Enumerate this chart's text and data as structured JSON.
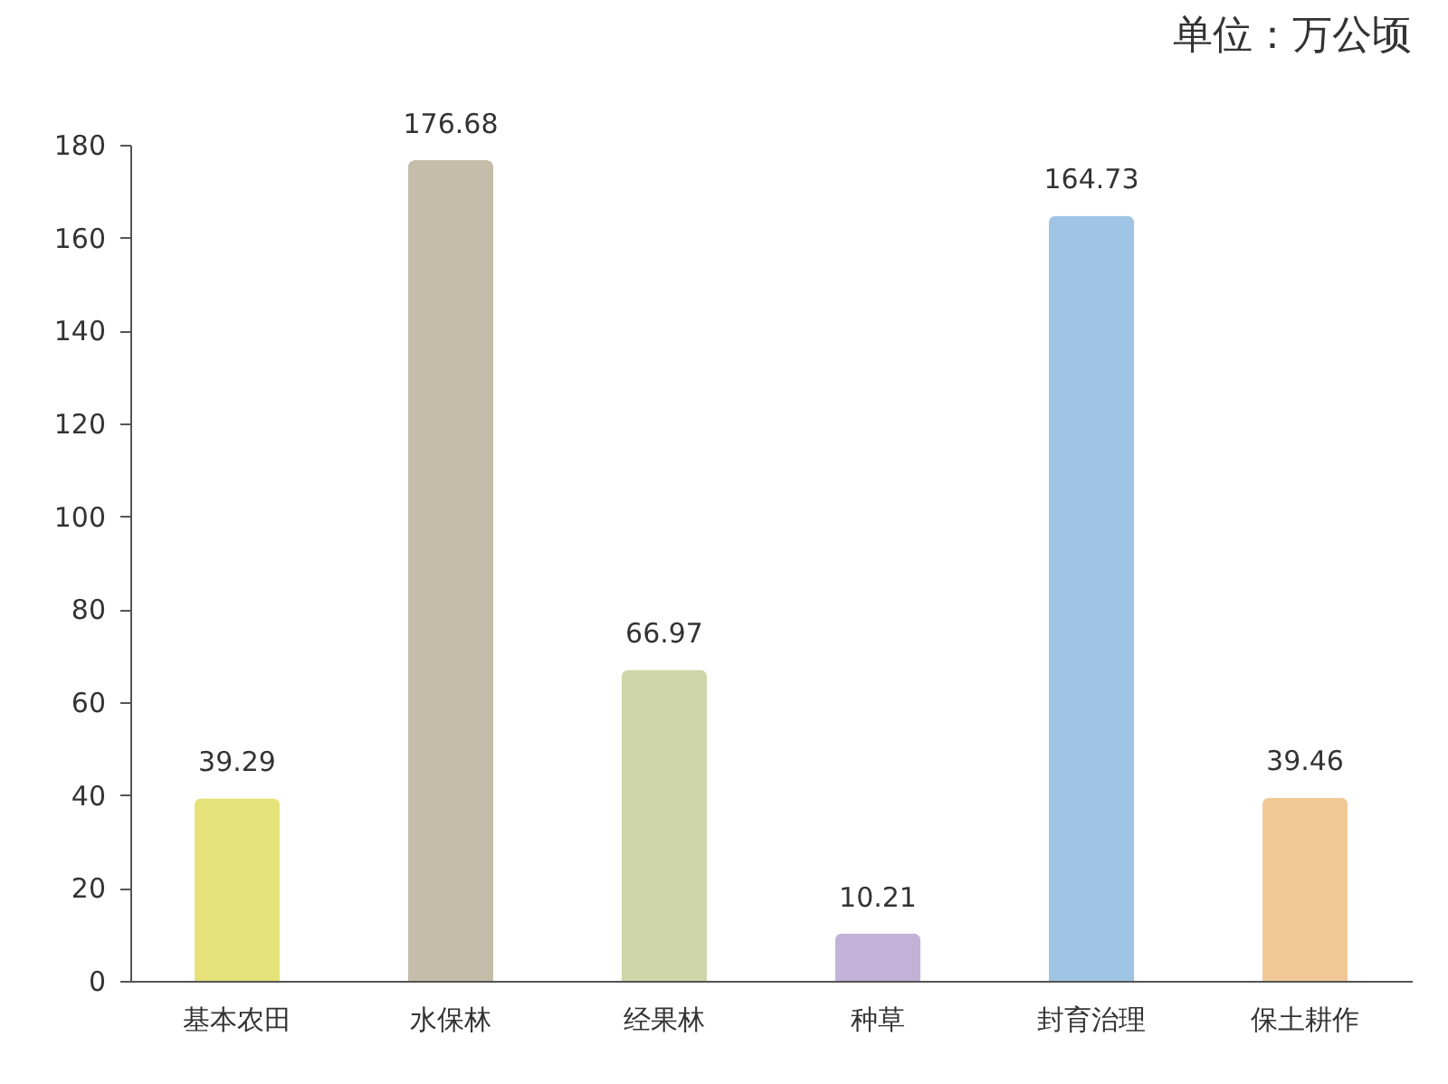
{
  "chart_data": {
    "type": "bar",
    "annotations": [
      "单位：万公顷"
    ],
    "categories": [
      "基本农田",
      "水保林",
      "经果林",
      "种草",
      "封育治理",
      "保土耕作"
    ],
    "values": [
      39.29,
      176.68,
      66.97,
      10.21,
      164.73,
      39.46
    ],
    "colors": [
      "#e6e27a",
      "#c5bca9",
      "#cfd6aa",
      "#c2b2d8",
      "#a0c4e3",
      "#f0c896"
    ],
    "data_labels": true,
    "ylim": [
      0,
      180
    ],
    "yticks": [
      0,
      20,
      40,
      60,
      80,
      100,
      120,
      140,
      160,
      180
    ],
    "grid": false
  }
}
